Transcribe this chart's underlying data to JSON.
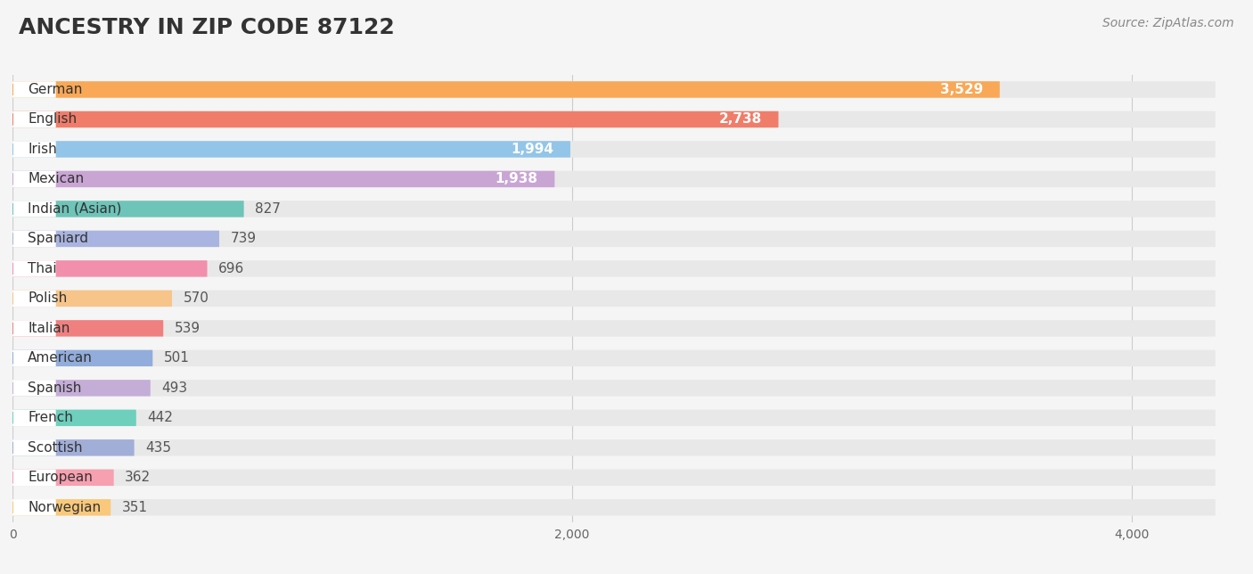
{
  "title": "ANCESTRY IN ZIP CODE 87122",
  "source_text": "Source: ZipAtlas.com",
  "categories": [
    "German",
    "English",
    "Irish",
    "Mexican",
    "Indian (Asian)",
    "Spaniard",
    "Thai",
    "Polish",
    "Italian",
    "American",
    "Spanish",
    "French",
    "Scottish",
    "European",
    "Norwegian"
  ],
  "values": [
    3529,
    2738,
    1994,
    1938,
    827,
    739,
    696,
    570,
    539,
    501,
    493,
    442,
    435,
    362,
    351
  ],
  "bar_colors": [
    "#F9A857",
    "#F07D6A",
    "#92C5E8",
    "#C9A5D4",
    "#6EC4B8",
    "#A9B5E0",
    "#F28FAD",
    "#F7C48A",
    "#F08080",
    "#92ADDB",
    "#C4AED8",
    "#6ECFBD",
    "#A0AED8",
    "#F7A0B0",
    "#F9C87A"
  ],
  "background_color": "#f5f5f5",
  "bar_background_color": "#e8e8e8",
  "xticks": [
    0,
    2000,
    4000
  ],
  "title_fontsize": 18,
  "label_fontsize": 11,
  "value_fontsize": 11,
  "source_fontsize": 10,
  "xlim_data_max": 4300
}
